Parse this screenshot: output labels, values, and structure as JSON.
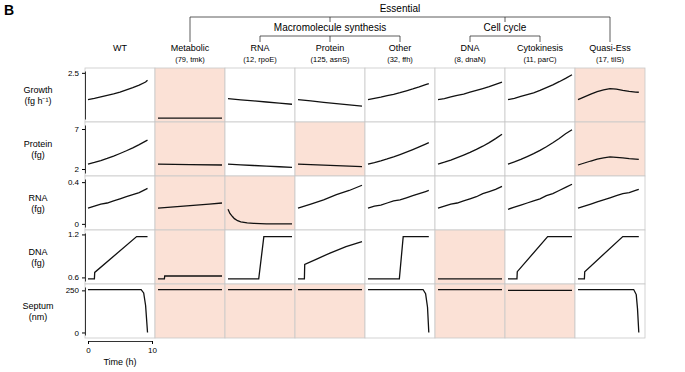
{
  "panel_label": "B",
  "groups": [
    {
      "label": "Essential",
      "from": "Metabolic",
      "to": "Quasi-Ess"
    },
    {
      "label": "Macromolecule synthesis",
      "from": "RNA",
      "to": "Other"
    },
    {
      "label": "Cell cycle",
      "from": "DNA",
      "to": "Cytokinesis"
    }
  ],
  "columns": [
    {
      "label": "WT"
    },
    {
      "label": "Metabolic",
      "detail": "(79, tmk)"
    },
    {
      "label": "RNA",
      "detail": "(12, rpoE)"
    },
    {
      "label": "Protein",
      "detail": "(125, asnS)"
    },
    {
      "label": "Other",
      "detail": "(32, ffh)"
    },
    {
      "label": "DNA",
      "detail": "(8, dnaN)"
    },
    {
      "label": "Cytokinesis",
      "detail": "(11, parC)"
    },
    {
      "label": "Quasi-Ess",
      "detail": "(17, tilS)"
    }
  ],
  "rows": [
    {
      "label": "Growth",
      "unit": "(fg h⁻¹)",
      "ylim": [
        0,
        2.6
      ],
      "yticks": [
        2.5
      ]
    },
    {
      "label": "Protein",
      "unit": "(fg)",
      "ylim": [
        1.5,
        7.5
      ],
      "yticks": [
        2,
        7
      ]
    },
    {
      "label": "RNA",
      "unit": "(fg)",
      "ylim": [
        -0.03,
        0.43
      ],
      "yticks": [
        0,
        0.4
      ]
    },
    {
      "label": "DNA",
      "unit": "(fg)",
      "ylim": [
        0.55,
        1.22
      ],
      "yticks": [
        0.6,
        1.2
      ]
    },
    {
      "label": "Septum",
      "unit": "(nm)",
      "ylim": [
        -15,
        270
      ],
      "yticks": [
        0,
        250
      ]
    }
  ],
  "xlabel": "Time (h)",
  "xlim": [
    0,
    10
  ],
  "xticks": [
    0,
    10
  ],
  "chart_data": [
    {
      "type": "line",
      "x": [
        0,
        1,
        2,
        3,
        4,
        5,
        6,
        7,
        8,
        9,
        9.3
      ],
      "values": [
        1.05,
        1.12,
        1.2,
        1.28,
        1.36,
        1.46,
        1.58,
        1.7,
        1.84,
        2.0,
        2.1
      ],
      "shaded": false
    },
    {
      "type": "line",
      "x": [
        0,
        10
      ],
      "values": [
        0.05,
        0.05
      ],
      "shaded": true
    },
    {
      "type": "line",
      "x": [
        0,
        2,
        4,
        6,
        8,
        10
      ],
      "values": [
        1.1,
        1.04,
        0.98,
        0.92,
        0.86,
        0.8
      ],
      "shaded": false
    },
    {
      "type": "line",
      "x": [
        0,
        2,
        4,
        6,
        8,
        10
      ],
      "values": [
        1.05,
        0.98,
        0.9,
        0.83,
        0.76,
        0.7
      ],
      "shaded": false
    },
    {
      "type": "line",
      "x": [
        0,
        1,
        2,
        3,
        4,
        5,
        6,
        7,
        8,
        9,
        9.5
      ],
      "values": [
        1.05,
        1.12,
        1.18,
        1.26,
        1.34,
        1.43,
        1.53,
        1.63,
        1.74,
        1.86,
        1.92
      ],
      "shaded": false
    },
    {
      "type": "line",
      "x": [
        0,
        1,
        2,
        3,
        4,
        5,
        6,
        7,
        8,
        9,
        10
      ],
      "values": [
        1.05,
        1.1,
        1.2,
        1.28,
        1.35,
        1.45,
        1.55,
        1.65,
        1.75,
        1.88,
        2.0
      ],
      "shaded": false
    },
    {
      "type": "line",
      "x": [
        0,
        1,
        2,
        3,
        4,
        5,
        6,
        7,
        8,
        9,
        10
      ],
      "values": [
        1.05,
        1.12,
        1.22,
        1.32,
        1.42,
        1.55,
        1.7,
        1.85,
        2.02,
        2.2,
        2.4
      ],
      "shaded": false
    },
    {
      "type": "line",
      "x": [
        0,
        1,
        2,
        3,
        4,
        5,
        6,
        7,
        8,
        9,
        9.5
      ],
      "values": [
        1.05,
        1.2,
        1.35,
        1.48,
        1.58,
        1.65,
        1.62,
        1.55,
        1.5,
        1.46,
        1.45
      ],
      "shaded": true
    },
    {
      "type": "line",
      "x": [
        0,
        1,
        2,
        3,
        4,
        5,
        6,
        7,
        8,
        9,
        9.3
      ],
      "values": [
        2.6,
        2.82,
        3.06,
        3.33,
        3.62,
        3.94,
        4.28,
        4.65,
        5.05,
        5.48,
        5.6
      ],
      "shaded": false
    },
    {
      "type": "line",
      "x": [
        0,
        5,
        10
      ],
      "values": [
        2.6,
        2.55,
        2.5
      ],
      "shaded": true
    },
    {
      "type": "line",
      "x": [
        0,
        2,
        4,
        6,
        8,
        10
      ],
      "values": [
        2.6,
        2.52,
        2.44,
        2.36,
        2.28,
        2.2
      ],
      "shaded": false
    },
    {
      "type": "line",
      "x": [
        0,
        2,
        4,
        6,
        8,
        10
      ],
      "values": [
        2.6,
        2.54,
        2.48,
        2.42,
        2.36,
        2.3
      ],
      "shaded": true
    },
    {
      "type": "line",
      "x": [
        0,
        1,
        2,
        3,
        4,
        5,
        6,
        7,
        8,
        9,
        9.5
      ],
      "values": [
        2.6,
        2.8,
        3.02,
        3.26,
        3.52,
        3.8,
        4.1,
        4.42,
        4.76,
        5.12,
        5.3
      ],
      "shaded": false
    },
    {
      "type": "line",
      "x": [
        0,
        1,
        2,
        3,
        4,
        5,
        6,
        7,
        8,
        9,
        10
      ],
      "values": [
        2.6,
        2.85,
        3.12,
        3.42,
        3.74,
        4.08,
        4.45,
        4.85,
        5.3,
        5.8,
        6.35
      ],
      "shaded": false
    },
    {
      "type": "line",
      "x": [
        0,
        1,
        2,
        3,
        4,
        5,
        6,
        7,
        8,
        9,
        10
      ],
      "values": [
        2.6,
        2.88,
        3.2,
        3.55,
        3.92,
        4.33,
        4.78,
        5.28,
        5.82,
        6.4,
        6.9
      ],
      "shaded": false
    },
    {
      "type": "line",
      "x": [
        0,
        1,
        2,
        3,
        4,
        5,
        6,
        7,
        8,
        9,
        9.5
      ],
      "values": [
        2.5,
        2.75,
        3.0,
        3.22,
        3.4,
        3.52,
        3.45,
        3.38,
        3.3,
        3.24,
        3.2
      ],
      "shaded": true
    },
    {
      "type": "line",
      "x": [
        0,
        1,
        2,
        3,
        4,
        5,
        6,
        7,
        8,
        9,
        9.3
      ],
      "values": [
        0.15,
        0.17,
        0.19,
        0.2,
        0.22,
        0.24,
        0.26,
        0.28,
        0.3,
        0.33,
        0.34
      ],
      "shaded": false
    },
    {
      "type": "line",
      "x": [
        0,
        2,
        4,
        6,
        8,
        10
      ],
      "values": [
        0.15,
        0.16,
        0.17,
        0.18,
        0.19,
        0.2
      ],
      "shaded": true
    },
    {
      "type": "line",
      "x": [
        0,
        0.3,
        0.7,
        1,
        1.5,
        2,
        3,
        4,
        6,
        8,
        10
      ],
      "values": [
        0.14,
        0.1,
        0.07,
        0.05,
        0.03,
        0.02,
        0.01,
        0.005,
        0,
        0,
        0
      ],
      "shaded": true
    },
    {
      "type": "line",
      "x": [
        0,
        2,
        4,
        6,
        8,
        10
      ],
      "values": [
        0.15,
        0.19,
        0.23,
        0.28,
        0.32,
        0.37
      ],
      "shaded": false
    },
    {
      "type": "line",
      "x": [
        0,
        1,
        2,
        3,
        4,
        5,
        6,
        7,
        8,
        9,
        9.5
      ],
      "values": [
        0.15,
        0.17,
        0.18,
        0.2,
        0.22,
        0.23,
        0.25,
        0.27,
        0.29,
        0.31,
        0.32
      ],
      "shaded": false
    },
    {
      "type": "line",
      "x": [
        0,
        1,
        2,
        3,
        4,
        5,
        6,
        7,
        8,
        9,
        10
      ],
      "values": [
        0.15,
        0.17,
        0.19,
        0.2,
        0.22,
        0.24,
        0.26,
        0.29,
        0.31,
        0.33,
        0.36
      ],
      "shaded": false
    },
    {
      "type": "line",
      "x": [
        0,
        1,
        2,
        3,
        4,
        5,
        6,
        7,
        8,
        9,
        10
      ],
      "values": [
        0.14,
        0.16,
        0.18,
        0.2,
        0.22,
        0.24,
        0.27,
        0.29,
        0.32,
        0.35,
        0.38
      ],
      "shaded": false
    },
    {
      "type": "line",
      "x": [
        0,
        1,
        2,
        3,
        4,
        5,
        6,
        7,
        8,
        9,
        9.5
      ],
      "values": [
        0.15,
        0.17,
        0.19,
        0.21,
        0.23,
        0.25,
        0.27,
        0.29,
        0.3,
        0.32,
        0.33
      ],
      "shaded": false
    },
    {
      "type": "line",
      "x": [
        0,
        1,
        1.05,
        7.6,
        9.3
      ],
      "values": [
        0.58,
        0.58,
        0.67,
        1.17,
        1.17
      ],
      "shaded": false
    },
    {
      "type": "line",
      "x": [
        0,
        1,
        1.05,
        10
      ],
      "values": [
        0.58,
        0.58,
        0.62,
        0.62
      ],
      "shaded": true
    },
    {
      "type": "line",
      "x": [
        0,
        4.8,
        5.6,
        10
      ],
      "values": [
        0.58,
        0.58,
        1.17,
        1.17
      ],
      "shaded": false
    },
    {
      "type": "line",
      "x": [
        0,
        1,
        1.05,
        3,
        5,
        7.5,
        10
      ],
      "values": [
        0.58,
        0.58,
        0.78,
        0.86,
        0.94,
        1.03,
        1.1
      ],
      "shaded": false
    },
    {
      "type": "line",
      "x": [
        0,
        4.9,
        5.5,
        9.5
      ],
      "values": [
        0.58,
        0.58,
        1.17,
        1.17
      ],
      "shaded": false
    },
    {
      "type": "line",
      "x": [
        0,
        10
      ],
      "values": [
        0.58,
        0.58
      ],
      "shaded": true
    },
    {
      "type": "line",
      "x": [
        0,
        1.4,
        1.45,
        6.2,
        10
      ],
      "values": [
        0.58,
        0.58,
        0.68,
        1.17,
        1.17
      ],
      "shaded": false
    },
    {
      "type": "line",
      "x": [
        0,
        1,
        1.05,
        7,
        9.5
      ],
      "values": [
        0.58,
        0.58,
        0.68,
        1.17,
        1.17
      ],
      "shaded": false
    },
    {
      "type": "line",
      "x": [
        0,
        8.3,
        8.7,
        9.0,
        9.3
      ],
      "values": [
        255,
        255,
        235,
        160,
        0
      ],
      "shaded": false
    },
    {
      "type": "line",
      "x": [
        0,
        10
      ],
      "values": [
        255,
        255
      ],
      "shaded": true
    },
    {
      "type": "line",
      "x": [
        0,
        10
      ],
      "values": [
        255,
        255
      ],
      "shaded": true
    },
    {
      "type": "line",
      "x": [
        0,
        10
      ],
      "values": [
        255,
        255
      ],
      "shaded": true
    },
    {
      "type": "line",
      "x": [
        0,
        8.6,
        9.0,
        9.3,
        9.5
      ],
      "values": [
        255,
        255,
        230,
        150,
        0
      ],
      "shaded": false
    },
    {
      "type": "line",
      "x": [
        0,
        10
      ],
      "values": [
        255,
        255
      ],
      "shaded": true
    },
    {
      "type": "line",
      "x": [
        0,
        10
      ],
      "values": [
        250,
        250
      ],
      "shaded": true
    },
    {
      "type": "line",
      "x": [
        0,
        8.7,
        9.1,
        9.3,
        9.5
      ],
      "values": [
        255,
        255,
        225,
        140,
        0
      ],
      "shaded": false
    }
  ]
}
